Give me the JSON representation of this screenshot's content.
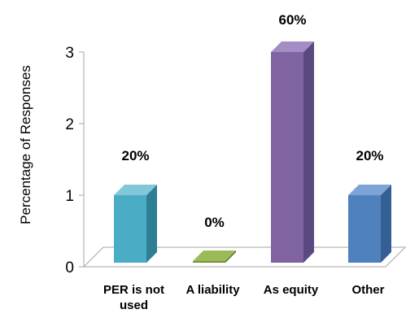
{
  "chart_data": {
    "type": "bar",
    "ylabel": "Percentage of Responses",
    "ylim": [
      0,
      3
    ],
    "yticks": [
      "0",
      "1",
      "2",
      "3"
    ],
    "categories": [
      "PER is not used",
      "A liability",
      "As equity",
      "Other"
    ],
    "category_lines": [
      [
        "PER is not",
        "used"
      ],
      [
        "A liability"
      ],
      [
        "As equity"
      ],
      [
        "Other"
      ]
    ],
    "values": [
      1,
      0,
      3,
      1
    ],
    "data_labels": [
      "20%",
      "0%",
      "60%",
      "20%"
    ],
    "colors": {
      "front": [
        "#4bacc6",
        "#77933c",
        "#8064a2",
        "#4f81bd"
      ],
      "side": [
        "#2e7f94",
        "#4f6228",
        "#5c4880",
        "#345f94"
      ],
      "top": [
        "#7fc7d9",
        "#9bbb59",
        "#a48cc4",
        "#7ea3d6"
      ]
    },
    "grid": false,
    "three_d": true
  }
}
